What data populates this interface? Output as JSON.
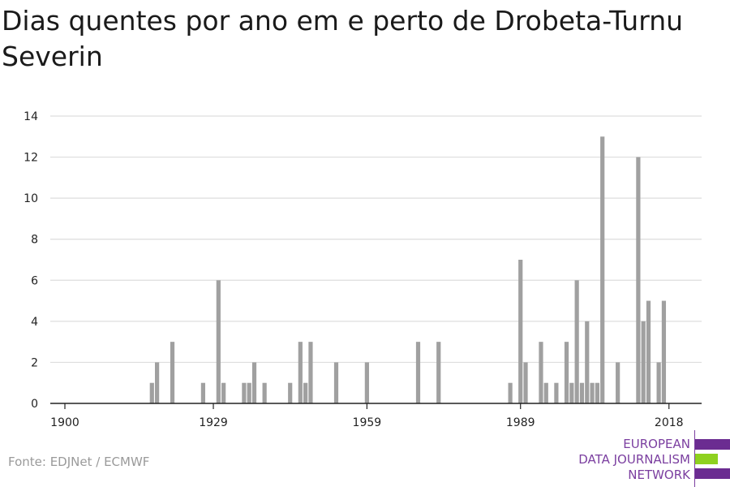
{
  "title": "Dias quentes por ano em e perto de Drobeta-Turnu Severin",
  "source": "Fonte: EDJNet / ECMWF",
  "logo": {
    "line1": "EUROPEAN",
    "line2": "DATA JOURNALISM",
    "line3": "NETWORK",
    "colors": {
      "purple": "#6b2c91",
      "green": "#8ed11f"
    }
  },
  "colors": {
    "bar": "#a0a0a0",
    "grid": "#dddddd",
    "axis": "#222222"
  },
  "chart_data": {
    "type": "bar",
    "title": "Dias quentes por ano em e perto de Drobeta-Turnu Severin",
    "xlabel": "",
    "ylabel": "",
    "ylim": [
      0,
      14
    ],
    "xlim": [
      1900,
      2022
    ],
    "y_ticks": [
      0,
      2,
      4,
      6,
      8,
      10,
      12,
      14
    ],
    "x_ticks": [
      1900,
      1929,
      1959,
      1989,
      2018
    ],
    "grid": true,
    "x": [
      1917,
      1918,
      1921,
      1927,
      1930,
      1931,
      1935,
      1936,
      1937,
      1939,
      1944,
      1946,
      1947,
      1948,
      1953,
      1959,
      1969,
      1973,
      1987,
      1989,
      1990,
      1993,
      1994,
      1996,
      1998,
      1999,
      2000,
      2001,
      2002,
      2003,
      2004,
      2005,
      2008,
      2012,
      2013,
      2014,
      2016,
      2017,
      2018
    ],
    "values": [
      1,
      2,
      3,
      1,
      6,
      1,
      1,
      1,
      2,
      1,
      1,
      3,
      1,
      3,
      2,
      2,
      3,
      3,
      1,
      7,
      2,
      3,
      1,
      1,
      3,
      1,
      6,
      1,
      4,
      1,
      1,
      13,
      2,
      12,
      4,
      5,
      2,
      5,
      0
    ]
  }
}
